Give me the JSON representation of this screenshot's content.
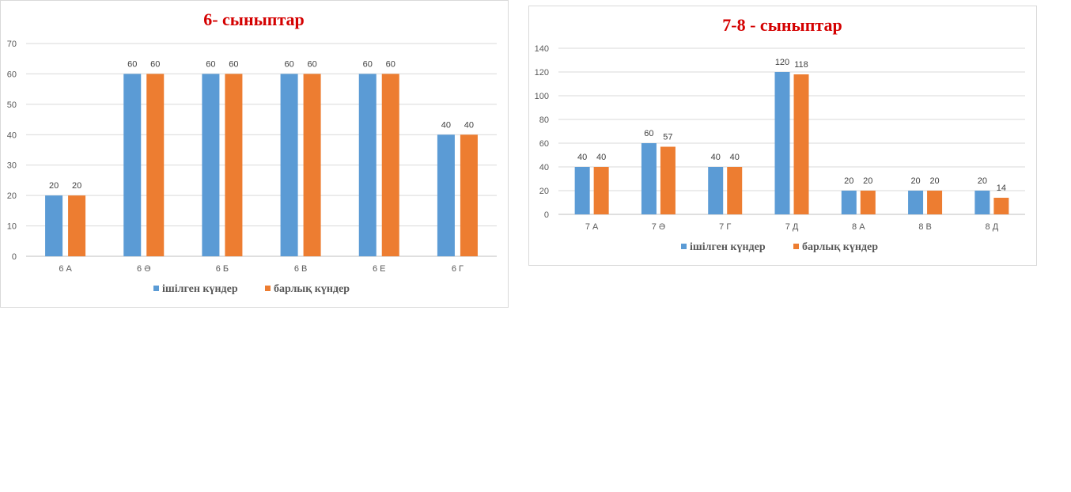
{
  "colors": {
    "series1": "#5b9bd5",
    "series2": "#ed7d31"
  },
  "chart_data": [
    {
      "type": "bar",
      "title": "6- сыныптар",
      "categories": [
        "6 А",
        "6 Ә",
        "6 Б",
        "6 В",
        "6 Е",
        "6  Г"
      ],
      "series": [
        {
          "name": "ішілген  күндер",
          "values": [
            20,
            60,
            60,
            60,
            60,
            40
          ]
        },
        {
          "name": "барлық күндер",
          "values": [
            20,
            60,
            60,
            60,
            60,
            40
          ]
        }
      ],
      "ylim": [
        0,
        70
      ],
      "yticks": [
        0,
        10,
        20,
        30,
        40,
        50,
        60,
        70
      ],
      "grid": true,
      "legend": "bottom"
    },
    {
      "type": "bar",
      "title": "7-8 - сыныптар",
      "categories": [
        "7 А",
        "7 Ә",
        "7 Г",
        "7 Д",
        "8 А",
        "8 В",
        "8 Д"
      ],
      "series": [
        {
          "name": "ішілген  күндер",
          "values": [
            40,
            60,
            40,
            120,
            20,
            20,
            20
          ]
        },
        {
          "name": "барлық күндер",
          "values": [
            40,
            57,
            40,
            118,
            20,
            20,
            14
          ]
        }
      ],
      "ylim": [
        0,
        140
      ],
      "yticks": [
        0,
        20,
        40,
        60,
        80,
        100,
        120,
        140
      ],
      "grid": true,
      "legend": "bottom"
    }
  ]
}
